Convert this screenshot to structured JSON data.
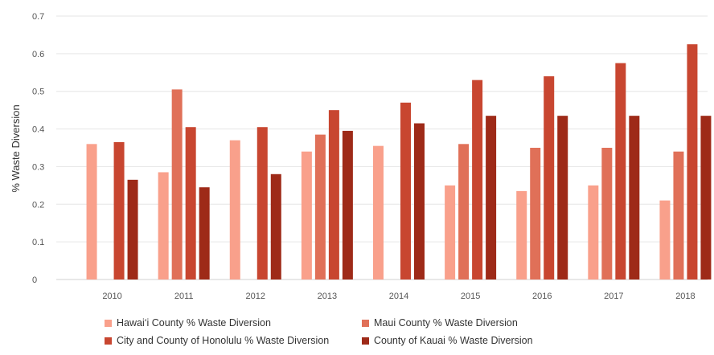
{
  "chart_data": {
    "type": "bar",
    "ylabel": "% Waste Diversion",
    "xlabel": "",
    "ylim": [
      0,
      0.7
    ],
    "yticks": [
      0,
      0.1,
      0.2,
      0.3,
      0.4,
      0.5,
      0.6,
      0.7
    ],
    "ytick_labels": [
      "0",
      "0.1",
      "0.2",
      "0.3",
      "0.4",
      "0.5",
      "0.6",
      "0.7"
    ],
    "grid": true,
    "legend_position": "bottom",
    "categories": [
      "2010",
      "2011",
      "2012",
      "2013",
      "2014",
      "2015",
      "2016",
      "2017",
      "2018"
    ],
    "series": [
      {
        "name": "Hawai‘i County % Waste Diversion",
        "color": "#f9a08b",
        "values": [
          0.36,
          0.285,
          0.37,
          0.34,
          0.355,
          0.25,
          0.235,
          0.25,
          0.21
        ]
      },
      {
        "name": "Maui County % Waste Diversion",
        "color": "#e07058",
        "values": [
          null,
          0.505,
          null,
          0.385,
          null,
          0.36,
          0.35,
          0.35,
          0.34
        ]
      },
      {
        "name": "City and County of Honolulu % Waste Diversion",
        "color": "#c84630",
        "values": [
          0.365,
          0.405,
          0.405,
          0.45,
          0.47,
          0.53,
          0.54,
          0.575,
          0.625
        ]
      },
      {
        "name": "County of Kauai % Waste Diversion",
        "color": "#9e2a18",
        "values": [
          0.265,
          0.245,
          0.28,
          0.395,
          0.415,
          0.435,
          0.435,
          0.435,
          0.435
        ]
      }
    ]
  }
}
